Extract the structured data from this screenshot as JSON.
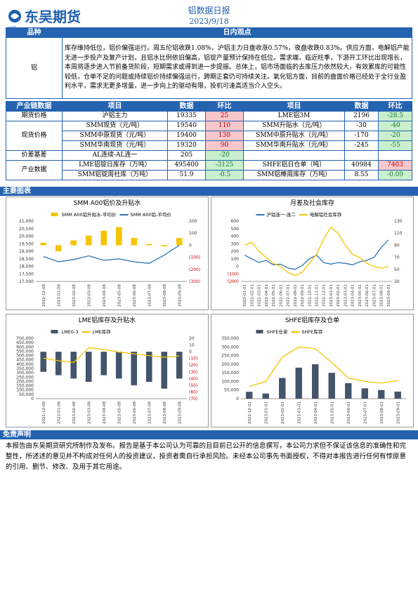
{
  "header": {
    "logo": "东吴期货",
    "logo_sub": "SCF",
    "title": "铝数据日报",
    "date": "2023/9/18"
  },
  "opinion": {
    "col1": "品种",
    "col2": "日内观点",
    "product": "铝",
    "text": "库存维持低位，铝价偏强运行。周五伦铝收跌1.08%，沪铝主力日盘收涨0.57%，夜盘收跌0.83%。供应方面，电解铝产能无进一步投产及复产计划，且铝水比例依旧偏高，铝锭产量预计保持在低位。需求端，临近旺季，下游开工环比出现增长，本周将逐步进入节前备货阶段，短期需求或得到进一步提振。总体上，铝市场面临的去库压力依然较大，有效累库的可能性较低，仓单不足的问题或持续铝价持续偏强运行，跨期正套仍可持续关注。氧化铝方面，目前的盘面价格已经处于全行业盈利水平，需求无更多增量，进一步向上的驱动有限，投机可逢高适当介入空头。"
  },
  "table": {
    "header": [
      "产业链数据",
      "项目",
      "数据",
      "环比",
      "项目",
      "数据",
      "环比"
    ],
    "groups": [
      {
        "name": "期货价格",
        "rows": [
          [
            "沪铝主力",
            19335,
            25,
            "LME铝3M",
            2196,
            -28.5
          ]
        ]
      },
      {
        "name": "现货价格",
        "rows": [
          [
            "SMM现货（元/吨）",
            19540,
            110,
            "SMM升贴水（元/吨）",
            -30,
            -40
          ],
          [
            "SMM中原现货（元/吨）",
            19400,
            130,
            "SMM中原升贴水（元/吨）",
            -170,
            -20
          ],
          [
            "SMM华南现货（元/吨）",
            19320,
            90,
            "SMM华南升贴水（元/吨）",
            -245,
            -55
          ]
        ]
      },
      {
        "name": "价差基差",
        "rows": [
          [
            "AL连续-AL连一",
            205,
            -20
          ]
        ]
      },
      {
        "name": "产业数据",
        "rows": [
          [
            "LME铝锭日库存（万吨）",
            495400,
            -3125,
            "SHFE铝日仓单（吨）",
            40984,
            7403
          ],
          [
            "SMM铝锭周社库（万吨）",
            51.9,
            -0.5,
            "SMM铝棒周库存（万吨）",
            8.55,
            -0.09
          ]
        ]
      }
    ]
  },
  "charts_title": "主要图表",
  "charts": [
    {
      "type": "combo",
      "title": "SMM A00铝价及升贴水",
      "categories": [
        "2022-12-08",
        "2023-01-08",
        "2023-02-08",
        "2023-03-08",
        "2023-04-08",
        "2023-05-08",
        "2023-06-08",
        "2023-07-08",
        "2023-08-08",
        "2023-09-08"
      ],
      "series": [
        {
          "name": "SMM A00铝升贴水-平均价",
          "type": "bar",
          "axis": "y2",
          "color": "#f5c400",
          "values": [
            20,
            -50,
            40,
            80,
            120,
            150,
            60,
            10,
            -10,
            60
          ]
        },
        {
          "name": "SMM A00铝-平均价",
          "type": "line",
          "color": "#2e75b6",
          "values": [
            18650,
            18300,
            18450,
            18700,
            18400,
            18500,
            18300,
            18200,
            18750,
            19400
          ]
        }
      ],
      "ylim": [
        17000,
        21000
      ],
      "yticks": [
        {
          "value": 17000,
          "label": "17,000"
        },
        {
          "value": 17500,
          "label": "17,500"
        },
        {
          "value": 18000,
          "label": "18,000"
        },
        {
          "value": 18500,
          "label": "18,500"
        },
        {
          "value": 19000,
          "label": "19,000"
        },
        {
          "value": 19500,
          "label": "19,500"
        },
        {
          "value": 20000,
          "label": "20,000"
        },
        {
          "value": 20500,
          "label": "20,500"
        },
        {
          "value": 21000,
          "label": "21,000"
        }
      ],
      "y2lim": [
        -300,
        200
      ],
      "y2ticks": [
        {
          "value": -300,
          "label": "(300)"
        },
        {
          "value": -200,
          "label": "(200)"
        },
        {
          "value": -100,
          "label": "(100)"
        },
        0,
        100,
        200
      ]
    },
    {
      "type": "combo",
      "title": "月差及社会库存",
      "categories": [
        "2022-01-01",
        "2022-02-01",
        "2022-03-01",
        "2022-04-01",
        "2022-05-01",
        "2022-06-01",
        "2022-07-01",
        "2022-08-01",
        "2022-09-01",
        "2022-10-01",
        "2022-11-01",
        "2022-12-01",
        "2023-01-01",
        "2023-02-01",
        "2023-03-01",
        "2023-04-01",
        "2023-05-01",
        "2023-06-01",
        "2023-07-01",
        "2023-08-01",
        "2023-09-01"
      ],
      "series": [
        {
          "name": "沪铝连一-连二",
          "type": "line",
          "color": "#2e75b6",
          "values": [
            150,
            100,
            50,
            80,
            20,
            30,
            -20,
            -40,
            10,
            100,
            150,
            50,
            30,
            50,
            40,
            20,
            60,
            80,
            120,
            250,
            350
          ]
        },
        {
          "name": "电解铝社会库存",
          "type": "line",
          "axis": "y2",
          "color": "#f5c400",
          "values": [
            90,
            95,
            80,
            70,
            60,
            55,
            45,
            40,
            45,
            60,
            75,
            100,
            120,
            110,
            90,
            75,
            70,
            60,
            55,
            52,
            55
          ]
        }
      ],
      "ylim": [
        -200,
        600
      ],
      "yticks": [
        {
          "value": -200,
          "label": "(200)"
        },
        {
          "value": -100,
          "label": "(100)"
        },
        0,
        100,
        200,
        300,
        400,
        500,
        600
      ],
      "y2lim": [
        30,
        130
      ],
      "y2ticks": [
        30,
        50,
        70,
        90,
        110,
        130
      ]
    },
    {
      "type": "combo",
      "title": "LME铝库存及升贴水",
      "categories": [
        "2022-12-08",
        "2023-01-08",
        "2023-02-08",
        "2023-03-08",
        "2023-04-08",
        "2023-05-08",
        "2023-06-08",
        "2023-07-08",
        "2023-08-08",
        "2023-09-08"
      ],
      "series": [
        {
          "name": "LME0-3",
          "type": "bar",
          "axis": "y2",
          "color": "#44546a",
          "values": [
            -30,
            -35,
            -40,
            -45,
            -35,
            -40,
            -50,
            -45,
            -55,
            -40
          ]
        },
        {
          "name": "LME库存",
          "type": "line",
          "color": "#f5c400",
          "values": [
            470000,
            440000,
            420000,
            590000,
            570000,
            540000,
            520000,
            500000,
            480000,
            495400
          ]
        }
      ],
      "ylim": [
        0,
        700000
      ],
      "yticks": [
        0,
        {
          "value": 50000,
          "label": "50,000"
        },
        {
          "value": 100000,
          "label": "100,000"
        },
        {
          "value": 150000,
          "label": "150,000"
        },
        {
          "value": 200000,
          "label": "200,000"
        },
        {
          "value": 250000,
          "label": "250,000"
        },
        {
          "value": 300000,
          "label": "300,000"
        },
        {
          "value": 350000,
          "label": "350,000"
        },
        {
          "value": 400000,
          "label": "400,000"
        },
        {
          "value": 450000,
          "label": "450,000"
        },
        {
          "value": 500000,
          "label": "500,000"
        },
        {
          "value": 550000,
          "label": "550,000"
        },
        {
          "value": 600000,
          "label": "600,000"
        },
        {
          "value": 650000,
          "label": "650,000"
        },
        {
          "value": 700000,
          "label": "700,000"
        }
      ],
      "y2lim": [
        -70,
        20
      ],
      "y2ticks": [
        {
          "value": -70,
          "label": "(70)"
        },
        {
          "value": -60,
          "label": "(60)"
        },
        {
          "value": -50,
          "label": "(50)"
        },
        {
          "value": -40,
          "label": "(40)"
        },
        {
          "value": -30,
          "label": "(30)"
        },
        {
          "value": -20,
          "label": "(20)"
        },
        {
          "value": -10,
          "label": "(10)"
        },
        0,
        10,
        20
      ]
    },
    {
      "type": "combo",
      "title": "SHFE铝库存及仓单",
      "categories": [
        "2022-12-01",
        "2023-01-01",
        "2023-02-01",
        "2023-03-01",
        "2023-04-01",
        "2023-05-01",
        "2023-06-01",
        "2023-07-01",
        "2023-08-01",
        "2023-09-01"
      ],
      "series": [
        {
          "name": "SHFE仓单",
          "type": "bar",
          "color": "#44546a",
          "values": [
            40000,
            30000,
            120000,
            180000,
            200000,
            150000,
            90000,
            60000,
            50000,
            40984
          ]
        },
        {
          "name": "SHFE库存",
          "type": "line",
          "color": "#f5c400",
          "values": [
            70000,
            100000,
            240000,
            300000,
            290000,
            210000,
            120000,
            100000,
            90000,
            105000
          ]
        }
      ],
      "ylim": [
        0,
        350000
      ],
      "yticks": [
        0,
        {
          "value": 50000,
          "label": "50,000"
        },
        {
          "value": 100000,
          "label": "100,000"
        },
        {
          "value": 150000,
          "label": "150,000"
        },
        {
          "value": 200000,
          "label": "200,000"
        },
        {
          "value": 250000,
          "label": "250,000"
        },
        {
          "value": 300000,
          "label": "300,000"
        },
        {
          "value": 350000,
          "label": "350,000"
        }
      ]
    }
  ],
  "disclaimer": {
    "title": "免责声明",
    "text": "本报告由东吴期货研究所制作及发布。报告是基于本公司认为可靠的且目前已公开的信息撰写，本公司力求但不保证该信息的准确性和完整性，所述述的意见并不构成对任何人的投资建议，投资者需自行承担风险。未经本公司事先书面授权，不得对本报告进行任何有悖原意的引用、删节、修改、及用于其它用途。"
  }
}
